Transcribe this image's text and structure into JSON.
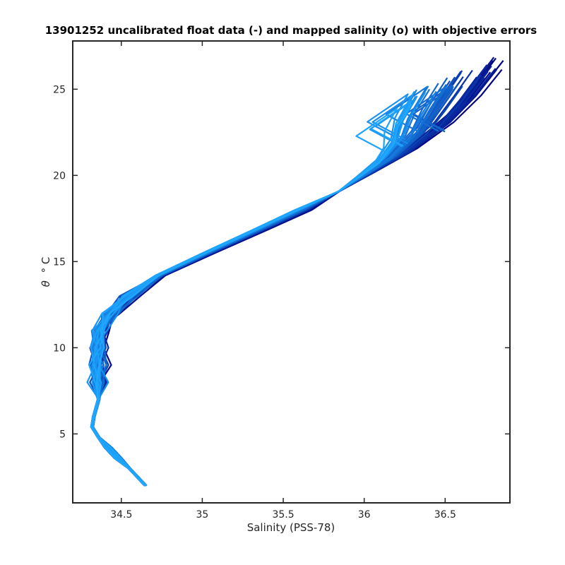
{
  "chart_data": {
    "type": "line",
    "title": "13901252 uncalibrated float data (-) and mapped salinity (o) with objective errors",
    "xlabel": "Salinity (PSS-78)",
    "ylabel_symbol": "θ",
    "ylabel_unit": "° C",
    "xlim": [
      34.2,
      36.9
    ],
    "ylim": [
      1.0,
      27.8
    ],
    "x_ticks": [
      34.5,
      35,
      35.5,
      36,
      36.5
    ],
    "x_tick_labels": [
      "34.5",
      "35",
      "35.5",
      "36",
      "36.5"
    ],
    "y_ticks": [
      5,
      10,
      15,
      20,
      25
    ],
    "y_tick_labels": [
      "5",
      "10",
      "15",
      "20",
      "25"
    ],
    "grid": false,
    "profile_count": 60,
    "color_start": "#000080",
    "color_end": "#1ea8ff",
    "base_profile": [
      [
        34.65,
        2.0
      ],
      [
        34.6,
        2.5
      ],
      [
        34.55,
        3.0
      ],
      [
        34.48,
        3.6
      ],
      [
        34.42,
        4.2
      ],
      [
        34.36,
        4.8
      ],
      [
        34.32,
        5.4
      ],
      [
        34.33,
        6.0
      ],
      [
        34.36,
        7.0
      ],
      [
        34.37,
        8.0
      ],
      [
        34.37,
        9.0
      ],
      [
        34.37,
        10.0
      ],
      [
        34.38,
        11.0
      ],
      [
        34.45,
        12.0
      ],
      [
        34.56,
        13.0
      ],
      [
        34.76,
        14.2
      ],
      [
        35.05,
        15.5
      ],
      [
        35.35,
        16.8
      ],
      [
        35.62,
        18.0
      ],
      [
        35.85,
        19.1
      ],
      [
        36.05,
        20.2
      ],
      [
        36.28,
        21.5
      ],
      [
        36.48,
        23.0
      ],
      [
        36.62,
        24.5
      ],
      [
        36.74,
        26.0
      ]
    ]
  }
}
